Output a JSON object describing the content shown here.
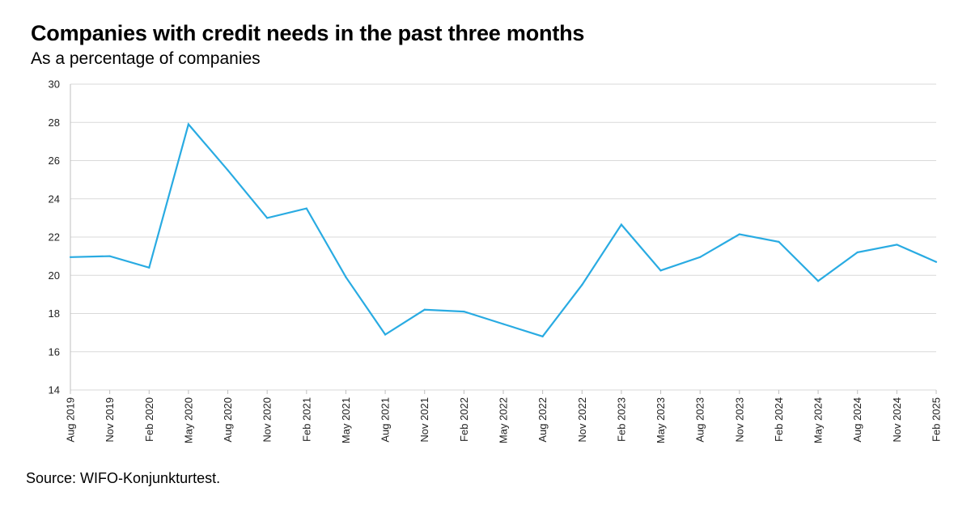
{
  "header": {
    "title": "Companies with credit needs in the past three months",
    "subtitle": "As a percentage of companies"
  },
  "footer": {
    "source": "Source: WIFO-Konjunkturtest."
  },
  "colors": {
    "line": "#29abe2",
    "grid": "#d9d9d9",
    "axis": "#bfbfbf"
  },
  "chart_data": {
    "type": "line",
    "title": "Companies with credit needs in the past three months",
    "subtitle": "As a percentage of companies",
    "xlabel": "",
    "ylabel": "",
    "ylim": [
      14,
      30
    ],
    "yticks": [
      14,
      16,
      18,
      20,
      22,
      24,
      26,
      28,
      30
    ],
    "grid": true,
    "categories": [
      "Aug 2019",
      "Nov 2019",
      "Feb 2020",
      "May 2020",
      "Aug 2020",
      "Nov 2020",
      "Feb 2021",
      "May 2021",
      "Aug 2021",
      "Nov 2021",
      "Feb 2022",
      "May 2022",
      "Aug 2022",
      "Nov 2022",
      "Feb 2023",
      "May 2023",
      "Aug 2023",
      "Nov 2023",
      "Feb 2024",
      "May 2024",
      "Aug 2024",
      "Nov 2024",
      "Feb 2025"
    ],
    "series": [
      {
        "values": [
          20.95,
          21.0,
          20.4,
          27.9,
          25.5,
          23.0,
          23.5,
          19.9,
          16.9,
          18.2,
          18.1,
          17.45,
          16.8,
          19.5,
          22.65,
          20.25,
          20.95,
          22.15,
          21.75,
          19.7,
          21.2,
          21.6,
          20.7
        ]
      }
    ]
  }
}
